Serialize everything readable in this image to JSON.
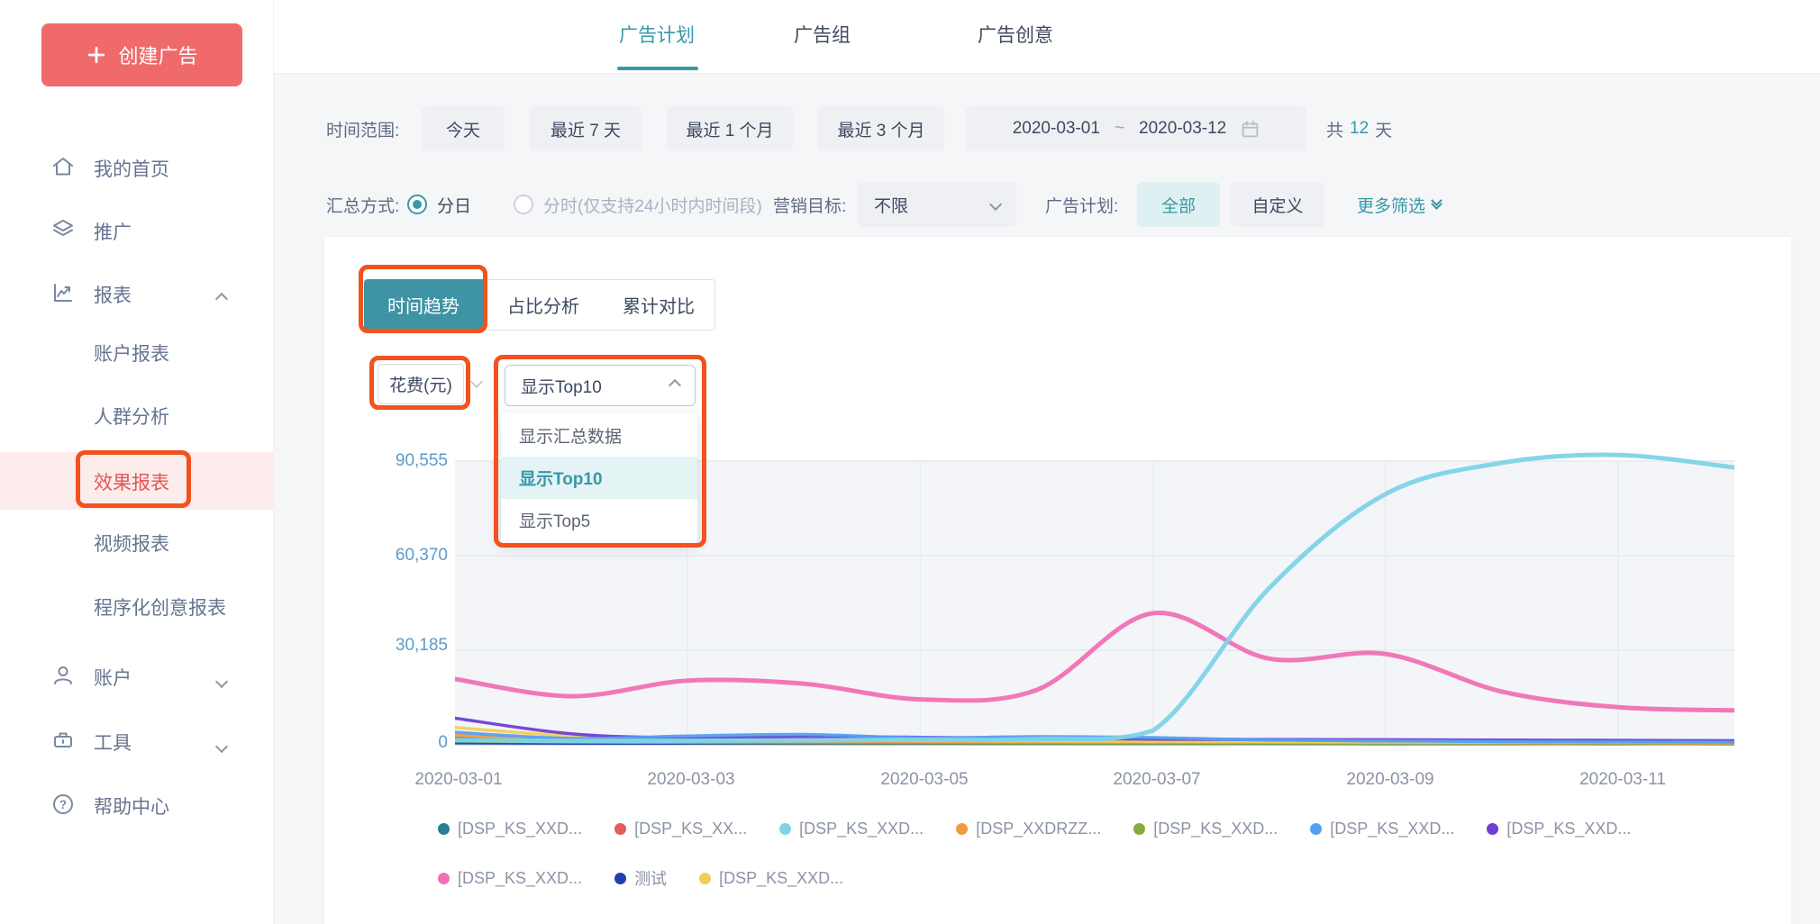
{
  "colors": {
    "accent_teal": "#3898a8",
    "segment_active": "#3e93a4",
    "brand_red": "#f06a6a",
    "annotation_orange": "#f2521d",
    "sidebar_active_text": "#e05757",
    "sidebar_active_bg": "#fdecec",
    "axis_label_blue": "#5d9bc7"
  },
  "topbar": {
    "tabs": [
      {
        "label": "广告计划",
        "active": true
      },
      {
        "label": "广告组",
        "active": false
      },
      {
        "label": "广告创意",
        "active": false
      }
    ]
  },
  "sidebar": {
    "create_button": "创建广告",
    "items": [
      {
        "label": "我的首页",
        "icon": "home-icon"
      },
      {
        "label": "推广",
        "icon": "layers-icon"
      },
      {
        "label": "报表",
        "icon": "report-chart-icon",
        "expanded": true
      }
    ],
    "report_subitems": [
      "账户报表",
      "人群分析",
      "效果报表",
      "视频报表",
      "程序化创意报表"
    ],
    "active_subitem": "效果报表",
    "bottom_items": [
      {
        "label": "账户",
        "icon": "user-icon",
        "expanded": false
      },
      {
        "label": "工具",
        "icon": "toolbox-icon",
        "expanded": false
      },
      {
        "label": "帮助中心",
        "icon": "help-icon"
      }
    ]
  },
  "filters": {
    "time_range_label": "时间范围:",
    "quick_ranges": [
      "今天",
      "最近 7 天",
      "最近 1 个月",
      "最近 3 个月"
    ],
    "date_start": "2020-03-01",
    "date_separator": "~",
    "date_end": "2020-03-12",
    "total_prefix": "共",
    "total_days": "12",
    "total_suffix": "天",
    "summary_label": "汇总方式:",
    "radio_daily": "分日",
    "radio_daily_selected": true,
    "radio_hourly": "分时(仅支持24小时内时间段)",
    "marketing_label": "营销目标:",
    "marketing_value": "不限",
    "campaign_label": "广告计划:",
    "campaign_all": "全部",
    "campaign_custom": "自定义",
    "more_filters": "更多筛选"
  },
  "panel": {
    "view_tabs": [
      {
        "label": "时间趋势",
        "active": true
      },
      {
        "label": "占比分析",
        "active": false
      },
      {
        "label": "累计对比",
        "active": false
      }
    ],
    "metric_selector": "花费(元)",
    "series_selector": {
      "value": "显示Top10",
      "open": true,
      "options": [
        "显示汇总数据",
        "显示Top10",
        "显示Top5"
      ],
      "selected_index": 1
    }
  },
  "chart_data": {
    "type": "line",
    "title": "",
    "xlabel": "",
    "ylabel": "花费(元)",
    "ylim": [
      0,
      90555
    ],
    "y_tick_labels": [
      "90,555",
      "60,370",
      "30,185",
      "0"
    ],
    "y_gridlines": [
      30185,
      60370,
      90555
    ],
    "x_dates": [
      "2020-03-01",
      "2020-03-02",
      "2020-03-03",
      "2020-03-04",
      "2020-03-05",
      "2020-03-06",
      "2020-03-07",
      "2020-03-08",
      "2020-03-09",
      "2020-03-10",
      "2020-03-11",
      "2020-03-12"
    ],
    "x_labels": [
      "2020-03-01",
      "2020-03-03",
      "2020-03-05",
      "2020-03-07",
      "2020-03-09",
      "2020-03-11"
    ],
    "x_grid_days": [
      2,
      4,
      6,
      8,
      10
    ],
    "legend_position": "bottom",
    "grid": true,
    "draw_order": [
      8,
      1,
      0,
      4,
      3,
      9,
      6,
      5,
      7,
      2
    ],
    "series": [
      {
        "name": "[DSP_KS_XXD...",
        "color": "#2a7f95",
        "values": [
          2000,
          1200,
          900,
          800,
          700,
          650,
          600,
          580,
          560,
          540,
          520,
          500
        ]
      },
      {
        "name": "[DSP_KS_XX...",
        "color": "#e25c5e",
        "values": [
          1500,
          1000,
          800,
          700,
          650,
          600,
          580,
          560,
          540,
          520,
          500,
          480
        ]
      },
      {
        "name": "[DSP_KS_XXD...",
        "color": "#7ed3e8",
        "width": 5,
        "values": [
          1500,
          1200,
          1300,
          1400,
          1600,
          1800,
          4500,
          50000,
          80000,
          90000,
          92500,
          88500
        ]
      },
      {
        "name": "[DSP_XXDRZZ...",
        "color": "#f09a41",
        "values": [
          3000,
          1800,
          1300,
          1100,
          1000,
          900,
          850,
          800,
          750,
          700,
          650,
          600
        ]
      },
      {
        "name": "[DSP_KS_XXD...",
        "color": "#84ad3d",
        "values": [
          1200,
          900,
          750,
          650,
          600,
          580,
          560,
          540,
          520,
          500,
          480,
          460
        ]
      },
      {
        "name": "[DSP_KS_XXD...",
        "color": "#55a0f2",
        "values": [
          4000,
          2000,
          2800,
          3300,
          2200,
          2600,
          2300,
          1500,
          1200,
          1000,
          900,
          800
        ]
      },
      {
        "name": "[DSP_KS_XXD...",
        "color": "#6e3ed6",
        "values": [
          8500,
          3500,
          2200,
          2600,
          2400,
          2000,
          1800,
          1700,
          1600,
          1500,
          1400,
          1300
        ]
      },
      {
        "name": "[DSP_KS_XXD...",
        "color": "#f170b5",
        "width": 5,
        "values": [
          21000,
          15500,
          20500,
          19500,
          14500,
          17500,
          42000,
          27500,
          29000,
          17000,
          12000,
          11000
        ]
      },
      {
        "name": "测试",
        "color": "#1e3fae",
        "values": [
          600,
          500,
          480,
          460,
          450,
          440,
          430,
          420,
          410,
          400,
          390,
          380
        ]
      },
      {
        "name": "[DSP_KS_XXD...",
        "color": "#f3cd56",
        "values": [
          5500,
          2800,
          1800,
          1500,
          1300,
          1200,
          1100,
          1000,
          900,
          850,
          800,
          750
        ]
      }
    ]
  }
}
